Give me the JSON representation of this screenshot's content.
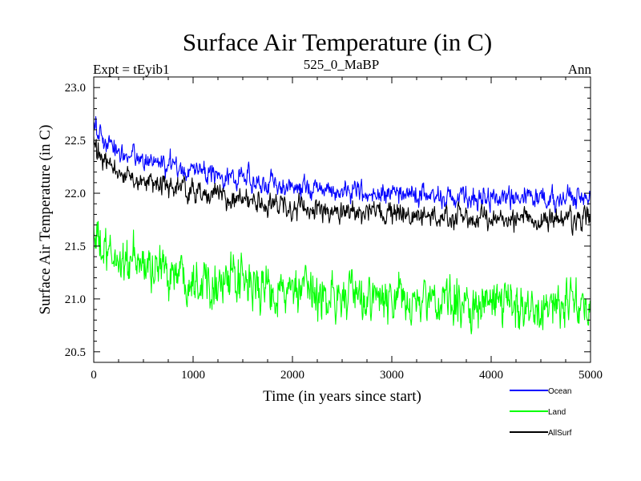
{
  "chart_data": {
    "type": "line",
    "title": "Surface Air Temperature (in C)",
    "subtitle_left": "Expt = tEyib1",
    "subtitle_center": "525_0_MaBP",
    "subtitle_right": "Ann",
    "xlabel": "Time (in years since start)",
    "ylabel": "Surface Air Temperature (in C)",
    "xlim": [
      0,
      5000
    ],
    "ylim": [
      20.4,
      23.1
    ],
    "xticks": [
      0,
      1000,
      2000,
      3000,
      4000,
      5000
    ],
    "xtick_labels": [
      "0",
      "1000",
      "2000",
      "3000",
      "4000",
      "5000"
    ],
    "yticks": [
      20.5,
      21.0,
      21.5,
      22.0,
      22.5,
      23.0
    ],
    "ytick_labels": [
      "20.5",
      "21.0",
      "21.5",
      "22.0",
      "22.5",
      "23.0"
    ],
    "grid": false,
    "legend_position": "bottom-right",
    "series": [
      {
        "name": "Ocean",
        "color": "#0000ff",
        "x": [
          0,
          50,
          100,
          200,
          300,
          500,
          700,
          1000,
          1300,
          1600,
          2000,
          2500,
          3000,
          3500,
          4000,
          4500,
          5000
        ],
        "mean": [
          22.7,
          22.55,
          22.48,
          22.42,
          22.38,
          22.32,
          22.27,
          22.22,
          22.17,
          22.12,
          22.06,
          22.02,
          21.99,
          21.97,
          21.96,
          21.95,
          21.95
        ],
        "noise_amplitude": 0.1
      },
      {
        "name": "Land",
        "color": "#00ff00",
        "x": [
          0,
          50,
          100,
          200,
          300,
          500,
          700,
          1000,
          1300,
          1600,
          2000,
          2500,
          3000,
          3500,
          4000,
          4500,
          5000
        ],
        "mean": [
          21.65,
          21.5,
          21.42,
          21.38,
          21.36,
          21.32,
          21.28,
          21.22,
          21.17,
          21.12,
          21.06,
          21.02,
          20.98,
          20.96,
          20.95,
          20.94,
          20.94
        ],
        "noise_amplitude": 0.22
      },
      {
        "name": "AllSurf",
        "color": "#000000",
        "x": [
          0,
          50,
          100,
          200,
          300,
          500,
          700,
          1000,
          1300,
          1600,
          2000,
          2500,
          3000,
          3500,
          4000,
          4500,
          5000
        ],
        "mean": [
          22.5,
          22.35,
          22.28,
          22.22,
          22.18,
          22.12,
          22.07,
          22.02,
          21.97,
          21.92,
          21.86,
          21.82,
          21.79,
          21.77,
          21.76,
          21.75,
          21.75
        ],
        "noise_amplitude": 0.1
      }
    ]
  }
}
